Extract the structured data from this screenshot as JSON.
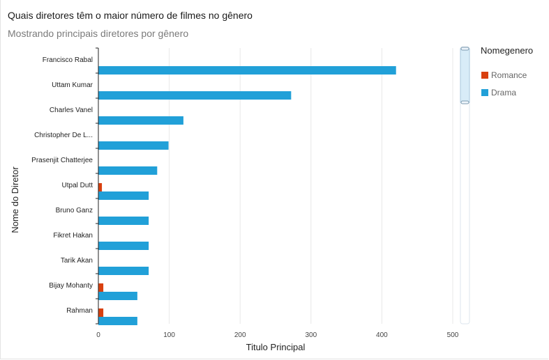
{
  "title": "Quais diretores têm o maior número de filmes no gênero",
  "subtitle": "Mostrando principais diretores por gênero",
  "colors": {
    "romance": "#d9400f",
    "drama": "#21a0d8",
    "grid": "#e8e8e8",
    "axis": "#222222",
    "scrollbar_fill": "#d8ecf8",
    "scrollbar_border": "#a9c7dc"
  },
  "chart_data": {
    "type": "bar",
    "orientation": "horizontal",
    "categories": [
      "Francisco Rabal",
      "Uttam Kumar",
      "Charles Vanel",
      "Christopher De L...",
      "Prasenjit Chatterjee",
      "Utpal Dutt",
      "Bruno Ganz",
      "Fikret Hakan",
      "Tarik Akan",
      "Bijay Mohanty",
      "Rahman"
    ],
    "series": [
      {
        "name": "Romance",
        "values": [
          0,
          0,
          0,
          0,
          0,
          5,
          0,
          0,
          0,
          7,
          7
        ]
      },
      {
        "name": "Drama",
        "values": [
          420,
          272,
          120,
          99,
          83,
          71,
          71,
          71,
          71,
          55,
          55
        ]
      }
    ],
    "xlabel": "Titulo Principal",
    "ylabel": "Nome do Diretor",
    "xlim": [
      0,
      500
    ],
    "xticks": [
      0,
      100,
      200,
      300,
      400,
      500
    ],
    "grid": true,
    "legend": {
      "title": "Nomegenero",
      "position": "right"
    }
  }
}
